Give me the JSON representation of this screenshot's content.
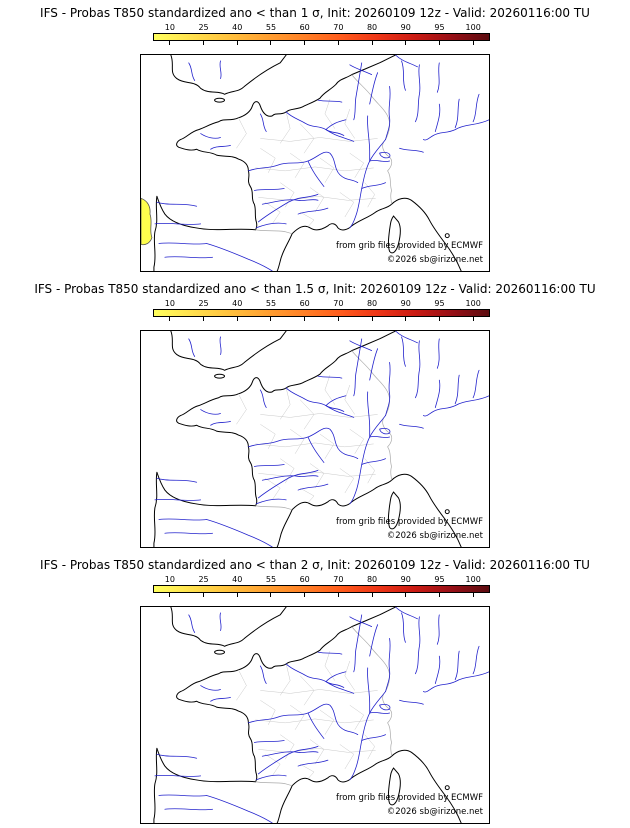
{
  "colors": {
    "coast": "#000000",
    "border": "#aaaaaa",
    "department": "#c8c8c8",
    "river": "#2222cc",
    "anomaly-patch": "#ffff4d"
  },
  "colorbar": {
    "ticks": [
      "10",
      "25",
      "40",
      "55",
      "60",
      "70",
      "80",
      "90",
      "95",
      "100"
    ],
    "colors": [
      "#ffff5e",
      "#ffe14e",
      "#ffc23e",
      "#ffa132",
      "#ff8126",
      "#ff5c1c",
      "#ee3617",
      "#cb1b13",
      "#970f16",
      "#5c0c10"
    ]
  },
  "panels": [
    {
      "title": "IFS - Probas T850  standardized ano < than 1 σ, Init: 20260109 12z - Valid: 20260116:00 TU",
      "credit_line1": "from grib files provided by ECMWF",
      "credit_line2": "©2026 sb@irizone.net",
      "anomaly_patch": true
    },
    {
      "title": "IFS - Probas T850  standardized ano < than 1.5 σ, Init: 20260109 12z - Valid: 20260116:00 TU",
      "credit_line1": "from grib files provided by ECMWF",
      "credit_line2": "©2026 sb@irizone.net",
      "anomaly_patch": false
    },
    {
      "title": "IFS - Probas T850  standardized ano < than 2 σ, Init: 20260109 12z - Valid: 20260116:00 TU",
      "credit_line1": "from grib files provided by ECMWF",
      "credit_line2": "©2026 sb@irizone.net",
      "anomaly_patch": false
    }
  ]
}
